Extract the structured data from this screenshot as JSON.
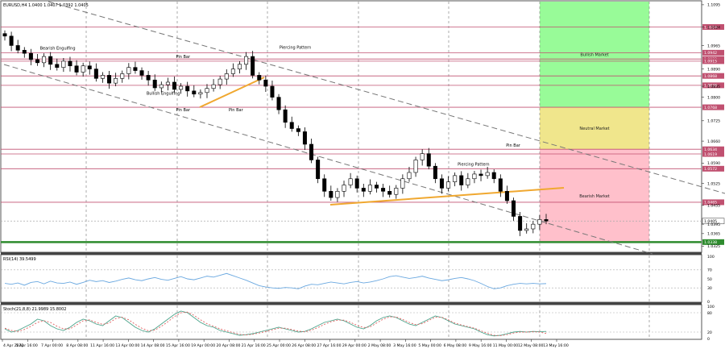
{
  "header": {
    "symbol_info": "EURUSD,H4  1.0400 1.0407 1.0392 1.0405"
  },
  "rsi_label": "RSI(14) 39.5499",
  "stoch_label": "Stoch(21,8,8) 21.9989 15.8002",
  "colors": {
    "bull_zone": "#98fb98",
    "neutral_zone": "#f0e68c",
    "bear_zone": "#ffc0cb",
    "level_line": "#c05070",
    "support_line": "#2e8b2e",
    "trend_line": "#f0a830",
    "channel": "#777777",
    "indicator": "#6aa8e0",
    "signal": "#e06060",
    "candle": "#000000"
  },
  "chart_data": {
    "type": "candlestick",
    "price_ticks": [
      "1.1095",
      "1.1024",
      "1.0965",
      "1.0890",
      "1.0835",
      "1.0800",
      "1.0725",
      "1.0660",
      "1.0590",
      "1.0525",
      "1.0455",
      "1.0395",
      "1.0365",
      "1.0325"
    ],
    "ylim": [
      1.0308,
      1.1105
    ],
    "levels": [
      {
        "value": "1.1024",
        "label": "1.1024"
      },
      {
        "value": "1.0942",
        "label": "1.0942"
      },
      {
        "value": "1.0922",
        "label": "1.0922"
      },
      {
        "value": "1.0915",
        "label": "1.0915"
      },
      {
        "value": "1.0868",
        "label": "1.0868"
      },
      {
        "value": "1.0838",
        "label": "1.0838"
      },
      {
        "value": "1.0768",
        "label": "1.0768"
      },
      {
        "value": "1.0634",
        "label": "1.0634"
      },
      {
        "value": "1.0619",
        "label": "1.0619"
      },
      {
        "value": "1.0572",
        "label": "1.0572"
      },
      {
        "value": "1.0465",
        "label": "1.0465"
      },
      {
        "value": "1.0405",
        "label": "1.0405"
      },
      {
        "value": "1.0338",
        "label": "1.0338"
      }
    ],
    "zones": [
      {
        "label": "Bullish Market",
        "top": 1.1105,
        "bottom": 1.0768
      },
      {
        "label": "Neutral Market",
        "top": 1.0768,
        "bottom": 1.0634
      },
      {
        "label": "Bearish Market",
        "top": 1.0634,
        "bottom": 1.0338
      }
    ],
    "annotations": [
      {
        "text": "Bearish Engulfing",
        "x": 4,
        "price": 1.0952
      },
      {
        "text": "Pin Bar",
        "x": 13.5,
        "price": 1.0925
      },
      {
        "text": "Bullish Engulfing",
        "x": 12,
        "price": 1.0808
      },
      {
        "text": "Pin Bar",
        "x": 13.5,
        "price": 1.0755
      },
      {
        "text": "Pin Bar",
        "x": 17.5,
        "price": 1.0755
      },
      {
        "text": "Piercing Pattern",
        "x": 22,
        "price": 1.0955
      },
      {
        "text": "Piercing Pattern",
        "x": 35.5,
        "price": 1.0582
      },
      {
        "text": "Pin Bar",
        "x": 38.5,
        "price": 1.0642
      }
    ],
    "x_labels": [
      "4 Apr 2022",
      "5 Apr 16:00",
      "7 Apr 00:00",
      "8 Apr 08:00",
      "11 Apr 16:00",
      "13 Apr 00:00",
      "14 Apr 08:00",
      "15 Apr 16:00",
      "19 Apr 00:00",
      "20 Apr 08:00",
      "21 Apr 16:00",
      "25 Apr 00:00",
      "26 Apr 08:00",
      "27 Apr 16:00",
      "29 Apr 00:00",
      "2 May 08:00",
      "3 May 16:00",
      "5 May 00:00",
      "6 May 08:00",
      "9 May 16:00",
      "11 May 00:00",
      "12 May 08:00",
      "13 May 16:00"
    ],
    "closes": [
      1.0995,
      1.0965,
      1.095,
      1.094,
      1.092,
      1.091,
      1.093,
      1.0905,
      1.0895,
      1.0915,
      1.09,
      1.088,
      1.09,
      1.089,
      1.086,
      1.087,
      1.0845,
      1.086,
      1.0875,
      1.0895,
      1.0885,
      1.087,
      1.0855,
      1.083,
      1.084,
      1.0848,
      1.0825,
      1.0835,
      1.082,
      1.081,
      1.0815,
      1.0828,
      1.084,
      1.0858,
      1.0875,
      1.089,
      1.0905,
      1.093,
      1.087,
      1.0855,
      1.0835,
      1.08,
      1.076,
      1.072,
      1.07,
      1.069,
      1.065,
      1.06,
      1.054,
      1.05,
      1.048,
      1.05,
      1.052,
      1.054,
      1.051,
      1.05,
      1.052,
      1.051,
      1.05,
      1.049,
      1.051,
      1.054,
      1.056,
      1.06,
      1.062,
      1.058,
      1.054,
      1.051,
      1.053,
      1.055,
      1.052,
      1.054,
      1.0555,
      1.055,
      1.056,
      1.054,
      1.05,
      1.047,
      1.042,
      1.0375,
      1.038,
      1.0395,
      1.041,
      1.0405
    ],
    "rsi": {
      "ticks": [
        "100",
        "70",
        "50",
        "30",
        "0"
      ],
      "ylim": [
        0,
        100
      ],
      "values": [
        40,
        38,
        41,
        36,
        42,
        44,
        39,
        45,
        41,
        40,
        43,
        38,
        42,
        47,
        44,
        46,
        42,
        45,
        49,
        52,
        48,
        46,
        50,
        53,
        49,
        47,
        51,
        55,
        50,
        48,
        52,
        56,
        54,
        58,
        62,
        57,
        52,
        47,
        41,
        35,
        32,
        30,
        29,
        31,
        30,
        28,
        34,
        38,
        37,
        40,
        43,
        41,
        39,
        42,
        44,
        41,
        43,
        46,
        50,
        55,
        57,
        54,
        51,
        53,
        56,
        52,
        49,
        46,
        48,
        51,
        53,
        50,
        46,
        40,
        33,
        28,
        30,
        35,
        38,
        40,
        39,
        40,
        39,
        39.5
      ]
    },
    "stoch": {
      "ticks": [
        "100",
        "80",
        "20",
        "0"
      ],
      "ylim": [
        0,
        100
      ],
      "main": [
        30,
        20,
        25,
        35,
        45,
        60,
        55,
        40,
        30,
        25,
        35,
        50,
        60,
        55,
        45,
        40,
        55,
        70,
        65,
        50,
        35,
        25,
        20,
        30,
        45,
        60,
        75,
        85,
        80,
        65,
        50,
        40,
        35,
        25,
        20,
        15,
        10,
        12,
        15,
        20,
        25,
        30,
        35,
        30,
        25,
        20,
        22,
        30,
        40,
        50,
        55,
        60,
        55,
        45,
        35,
        30,
        40,
        55,
        65,
        70,
        65,
        55,
        45,
        40,
        50,
        60,
        70,
        65,
        55,
        45,
        40,
        35,
        30,
        20,
        12,
        8,
        10,
        15,
        20,
        22,
        20,
        22,
        21,
        22
      ],
      "signal": [
        32,
        25,
        22,
        28,
        38,
        50,
        55,
        50,
        38,
        30,
        30,
        42,
        55,
        58,
        50,
        44,
        48,
        62,
        66,
        58,
        44,
        32,
        24,
        26,
        38,
        52,
        68,
        80,
        82,
        72,
        58,
        46,
        38,
        30,
        24,
        18,
        13,
        11,
        13,
        17,
        22,
        27,
        32,
        32,
        28,
        23,
        21,
        26,
        34,
        44,
        52,
        57,
        57,
        50,
        41,
        34,
        36,
        48,
        60,
        67,
        67,
        59,
        50,
        43,
        46,
        56,
        66,
        66,
        58,
        48,
        42,
        37,
        32,
        24,
        16,
        10,
        9,
        12,
        17,
        20,
        20,
        21,
        20,
        15.8
      ]
    }
  }
}
